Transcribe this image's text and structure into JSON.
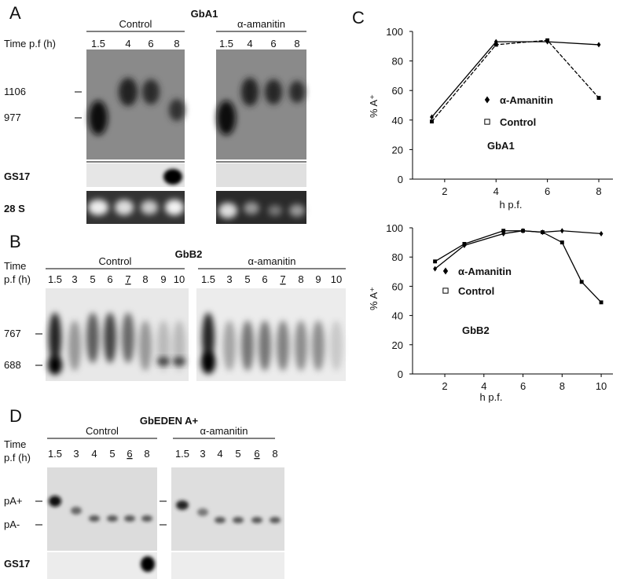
{
  "panels": {
    "A": {
      "letter": "A",
      "title": "GbA1",
      "groups": [
        "Control",
        "α-amanitin"
      ],
      "time_label": [
        "Time p.f (h)"
      ],
      "lanes": [
        [
          "1.5",
          "4",
          "6",
          "8"
        ],
        [
          "1.5",
          "4",
          "6",
          "8"
        ]
      ],
      "markers": [
        "1106",
        "977"
      ],
      "strips": [
        "GS17",
        "28 S"
      ]
    },
    "B": {
      "letter": "B",
      "title": "GbB2",
      "groups": [
        "Control",
        "α-amanitin"
      ],
      "time_label": [
        "Time",
        "p.f (h)"
      ],
      "lanes": [
        [
          "1.5",
          "3",
          "5",
          "6",
          "7",
          "8",
          "9",
          "10"
        ],
        [
          "1.5",
          "3",
          "5",
          "6",
          "7",
          "8",
          "9",
          "10"
        ]
      ],
      "underlined": [
        4
      ],
      "markers": [
        "767",
        "688"
      ]
    },
    "C": {
      "letter": "C"
    },
    "D": {
      "letter": "D",
      "title": "GbEDEN A+",
      "groups": [
        "Control",
        "α-amanitin"
      ],
      "time_label": [
        "Time",
        "p.f (h)"
      ],
      "lanes": [
        [
          "1.5",
          "3",
          "4",
          "5",
          "6",
          "8"
        ],
        [
          "1.5",
          "3",
          "4",
          "5",
          "6",
          "8"
        ]
      ],
      "underlined": [
        4
      ],
      "markers": [
        "pA+",
        "pA-"
      ],
      "strips": [
        "GS17"
      ]
    }
  },
  "chart_data": [
    {
      "type": "line",
      "annotation": "GbA1",
      "x_label": "h p.f.",
      "y_label": "% A⁺",
      "xlim": [
        0.75,
        8.55
      ],
      "xticks": [
        2,
        4,
        6,
        8
      ],
      "ylim": [
        0,
        100
      ],
      "yticks": [
        0,
        20,
        40,
        60,
        80,
        100
      ],
      "series": [
        {
          "name": "α-Amanitin",
          "color": "#000000",
          "marker": "diamond",
          "x": [
            1.5,
            4,
            6,
            8
          ],
          "values": [
            42,
            93,
            93,
            91
          ]
        },
        {
          "name": "Control",
          "color": "#000000",
          "marker": "square",
          "dashed": true,
          "x": [
            1.5,
            4,
            6,
            8
          ],
          "values": [
            39,
            91,
            94,
            55
          ]
        }
      ]
    },
    {
      "type": "line",
      "annotation": "GbB2",
      "x_label": "h  p.f.",
      "y_label": "% A⁺",
      "xlim": [
        0.35,
        10.6
      ],
      "xticks": [
        2,
        4,
        6,
        8,
        10
      ],
      "ylim": [
        0,
        100
      ],
      "yticks": [
        0,
        20,
        40,
        60,
        80,
        100
      ],
      "series": [
        {
          "name": "α-Amanitin",
          "color": "#000000",
          "marker": "diamond",
          "x": [
            1.5,
            3,
            5,
            6,
            7,
            8,
            10
          ],
          "values": [
            72,
            88,
            96,
            98,
            97,
            98,
            96
          ]
        },
        {
          "name": "Control",
          "color": "#000000",
          "marker": "square",
          "x": [
            1.5,
            3,
            5,
            6,
            7,
            8,
            9,
            10
          ],
          "values": [
            77,
            89,
            98,
            98,
            97,
            90,
            63,
            49
          ]
        }
      ]
    }
  ]
}
